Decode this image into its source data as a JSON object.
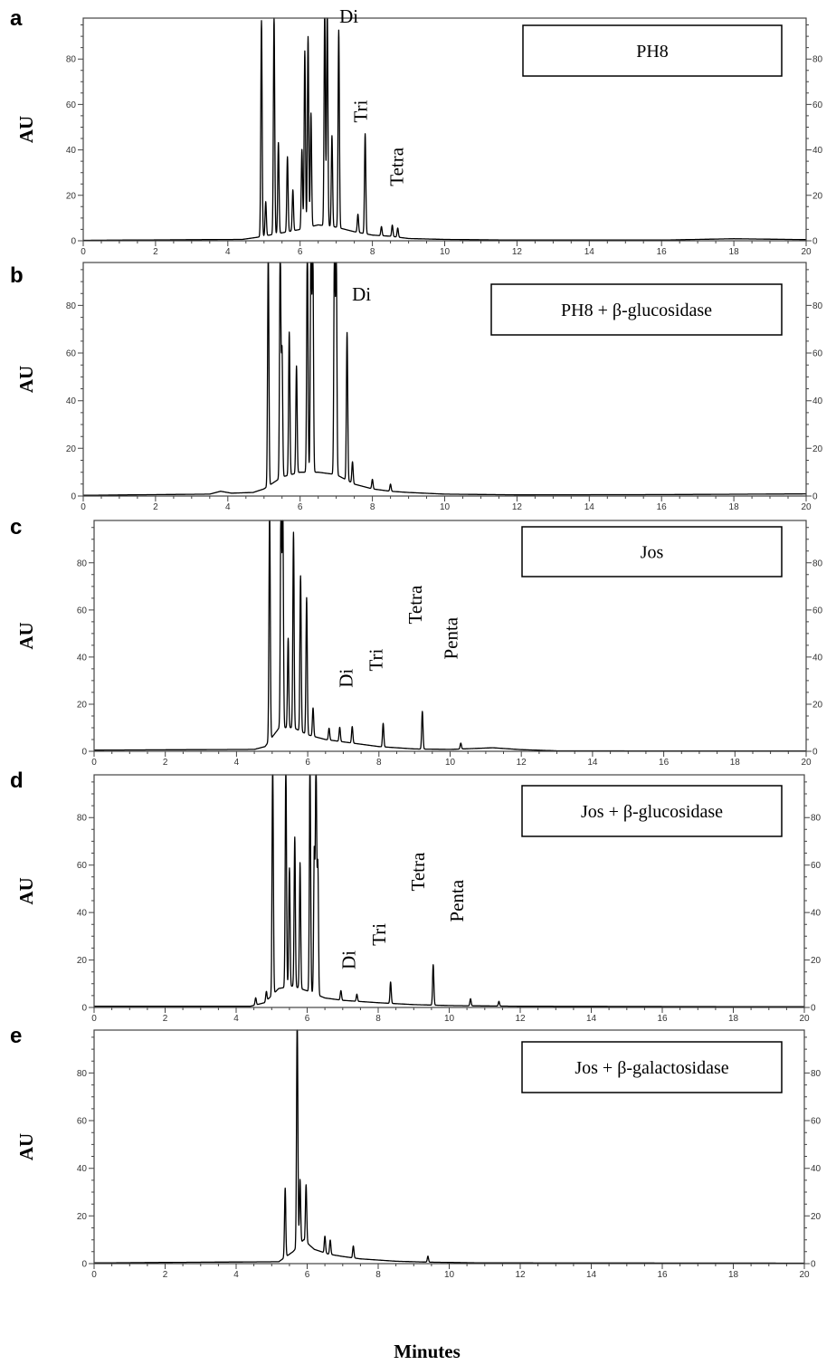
{
  "chart_data": [
    {
      "type": "line",
      "panel": "a",
      "ylabel": "AU",
      "legend": "PH8",
      "xlim": [
        0,
        20
      ],
      "ylim": [
        0,
        98
      ],
      "xticks": [
        0,
        2,
        4,
        6,
        8,
        10,
        12,
        14,
        16,
        18,
        20
      ],
      "yticks": [
        0,
        20,
        40,
        60,
        80
      ],
      "baseline": [
        [
          0,
          0.2
        ],
        [
          4.4,
          0.6
        ],
        [
          4.8,
          1.5
        ],
        [
          5.5,
          3.5
        ],
        [
          6.0,
          5
        ],
        [
          6.5,
          7
        ],
        [
          7.0,
          6
        ],
        [
          7.5,
          4
        ],
        [
          8.0,
          2.5
        ],
        [
          8.5,
          2
        ],
        [
          9.0,
          1
        ],
        [
          10,
          0.6
        ],
        [
          12,
          0.3
        ],
        [
          16,
          0.3
        ],
        [
          18,
          0.9
        ],
        [
          20,
          0.5
        ]
      ],
      "peaks": [
        [
          4.93,
          95
        ],
        [
          5.05,
          15
        ],
        [
          5.28,
          96
        ],
        [
          5.4,
          40
        ],
        [
          5.65,
          33
        ],
        [
          5.8,
          18
        ],
        [
          6.05,
          35
        ],
        [
          6.13,
          78
        ],
        [
          6.22,
          84
        ],
        [
          6.3,
          50
        ],
        [
          6.68,
          95
        ],
        [
          6.75,
          96
        ],
        [
          6.88,
          40
        ],
        [
          7.07,
          87
        ],
        [
          7.6,
          8
        ],
        [
          7.8,
          44
        ],
        [
          8.25,
          4
        ],
        [
          8.55,
          5
        ],
        [
          8.7,
          4
        ]
      ],
      "annotations": [
        {
          "text": "Di",
          "x": 7.35,
          "y": 96,
          "rotate": false
        },
        {
          "text": "Tri",
          "x": 7.85,
          "y": 52,
          "rotate": true
        },
        {
          "text": "Tetra",
          "x": 8.85,
          "y": 24,
          "rotate": true
        }
      ]
    },
    {
      "type": "line",
      "panel": "b",
      "ylabel": "AU",
      "legend": "PH8 + β-glucosidase",
      "xlim": [
        0,
        20
      ],
      "ylim": [
        0,
        98
      ],
      "xticks": [
        0,
        2,
        4,
        6,
        8,
        10,
        12,
        14,
        16,
        18,
        20
      ],
      "yticks": [
        0,
        20,
        40,
        60,
        80
      ],
      "baseline": [
        [
          0,
          0.3
        ],
        [
          3.5,
          0.8
        ],
        [
          3.8,
          2
        ],
        [
          4.1,
          1.2
        ],
        [
          4.7,
          1.5
        ],
        [
          5.0,
          3
        ],
        [
          5.5,
          8
        ],
        [
          6.0,
          10
        ],
        [
          6.5,
          10
        ],
        [
          7.0,
          9
        ],
        [
          7.5,
          5
        ],
        [
          8.0,
          3
        ],
        [
          8.5,
          2
        ],
        [
          9.0,
          1.5
        ],
        [
          10,
          0.8
        ],
        [
          12,
          0.5
        ],
        [
          16,
          0.6
        ],
        [
          20,
          0.9
        ]
      ],
      "peaks": [
        [
          5.12,
          98
        ],
        [
          5.45,
          98
        ],
        [
          5.5,
          53
        ],
        [
          5.7,
          60
        ],
        [
          5.9,
          45
        ],
        [
          6.2,
          98
        ],
        [
          6.3,
          98
        ],
        [
          6.35,
          98
        ],
        [
          6.95,
          98
        ],
        [
          7.0,
          98
        ],
        [
          7.3,
          62
        ],
        [
          7.45,
          9
        ],
        [
          8.0,
          4
        ],
        [
          8.5,
          3
        ]
      ],
      "annotations": [
        {
          "text": "Di",
          "x": 7.7,
          "y": 82,
          "rotate": false
        }
      ]
    },
    {
      "type": "line",
      "panel": "c",
      "ylabel": "AU",
      "legend": "Jos",
      "xlim": [
        0,
        20
      ],
      "ylim": [
        0,
        98
      ],
      "xticks": [
        0,
        2,
        4,
        6,
        8,
        10,
        12,
        14,
        16,
        18,
        20
      ],
      "yticks": [
        0,
        20,
        40,
        60,
        80
      ],
      "baseline": [
        [
          0,
          0.5
        ],
        [
          4.5,
          0.8
        ],
        [
          4.8,
          2
        ],
        [
          5.2,
          10
        ],
        [
          5.6,
          10
        ],
        [
          6.0,
          7
        ],
        [
          6.5,
          5
        ],
        [
          7.0,
          4
        ],
        [
          7.5,
          3
        ],
        [
          8.0,
          2
        ],
        [
          9.0,
          1
        ],
        [
          10,
          0.8
        ],
        [
          11.2,
          1.5
        ],
        [
          12,
          0.7
        ],
        [
          13,
          0.2
        ],
        [
          20,
          0.1
        ]
      ],
      "peaks": [
        [
          4.93,
          98
        ],
        [
          5.25,
          98
        ],
        [
          5.3,
          97
        ],
        [
          5.45,
          38
        ],
        [
          5.6,
          83
        ],
        [
          5.8,
          66
        ],
        [
          5.97,
          58
        ],
        [
          6.15,
          12
        ],
        [
          6.6,
          5
        ],
        [
          6.9,
          6
        ],
        [
          7.25,
          7
        ],
        [
          8.12,
          10
        ],
        [
          9.22,
          16
        ],
        [
          10.3,
          2.5
        ]
      ],
      "annotations": [
        {
          "text": "Di",
          "x": 7.25,
          "y": 27,
          "rotate": true
        },
        {
          "text": "Tri",
          "x": 8.1,
          "y": 34,
          "rotate": true
        },
        {
          "text": "Tetra",
          "x": 9.2,
          "y": 54,
          "rotate": true
        },
        {
          "text": "Penta",
          "x": 10.2,
          "y": 39,
          "rotate": true
        }
      ]
    },
    {
      "type": "line",
      "panel": "d",
      "ylabel": "AU",
      "legend": "Jos + β-glucosidase",
      "xlim": [
        0,
        20
      ],
      "ylim": [
        0,
        98
      ],
      "xticks": [
        0,
        2,
        4,
        6,
        8,
        10,
        12,
        14,
        16,
        18,
        20
      ],
      "yticks": [
        0,
        20,
        40,
        60,
        80
      ],
      "baseline": [
        [
          0,
          0.5
        ],
        [
          4.4,
          0.5
        ],
        [
          4.8,
          2
        ],
        [
          5.2,
          8
        ],
        [
          5.6,
          9
        ],
        [
          6.0,
          7
        ],
        [
          6.5,
          4
        ],
        [
          7.0,
          3
        ],
        [
          7.5,
          2.5
        ],
        [
          8.0,
          2
        ],
        [
          9.0,
          1.2
        ],
        [
          10,
          0.8
        ],
        [
          12,
          0.5
        ],
        [
          20,
          0.3
        ]
      ],
      "peaks": [
        [
          4.55,
          3
        ],
        [
          4.85,
          4
        ],
        [
          5.03,
          98
        ],
        [
          5.4,
          98
        ],
        [
          5.5,
          50
        ],
        [
          5.65,
          63
        ],
        [
          5.8,
          53
        ],
        [
          6.08,
          98
        ],
        [
          6.2,
          60
        ],
        [
          6.25,
          98
        ],
        [
          6.3,
          55
        ],
        [
          6.95,
          4
        ],
        [
          7.4,
          3
        ],
        [
          8.35,
          9
        ],
        [
          9.55,
          17
        ],
        [
          10.6,
          3
        ],
        [
          11.4,
          2
        ]
      ],
      "annotations": [
        {
          "text": "Di",
          "x": 7.35,
          "y": 16,
          "rotate": true
        },
        {
          "text": "Tri",
          "x": 8.2,
          "y": 26,
          "rotate": true
        },
        {
          "text": "Tetra",
          "x": 9.3,
          "y": 49,
          "rotate": true
        },
        {
          "text": "Penta",
          "x": 10.4,
          "y": 36,
          "rotate": true
        }
      ]
    },
    {
      "type": "line",
      "panel": "e",
      "ylabel": "AU",
      "legend": "Jos + β-galactosidase",
      "xlim": [
        0,
        20
      ],
      "ylim": [
        0,
        98
      ],
      "xticks": [
        0,
        2,
        4,
        6,
        8,
        10,
        12,
        14,
        16,
        18,
        20
      ],
      "yticks": [
        0,
        20,
        40,
        60,
        80
      ],
      "baseline": [
        [
          0,
          0.3
        ],
        [
          5.2,
          0.8
        ],
        [
          5.6,
          5
        ],
        [
          5.9,
          10
        ],
        [
          6.2,
          6
        ],
        [
          6.6,
          4
        ],
        [
          7.0,
          3
        ],
        [
          7.5,
          2
        ],
        [
          8.0,
          1.5
        ],
        [
          8.5,
          1
        ],
        [
          9.5,
          0.6
        ],
        [
          11,
          0.3
        ],
        [
          20,
          0.2
        ]
      ],
      "peaks": [
        [
          5.38,
          29
        ],
        [
          5.72,
          97
        ],
        [
          5.8,
          27
        ],
        [
          5.97,
          24
        ],
        [
          6.5,
          7
        ],
        [
          6.65,
          6
        ],
        [
          7.3,
          5
        ],
        [
          9.4,
          2.5
        ]
      ],
      "annotations": []
    }
  ],
  "xlabel": "Minutes"
}
